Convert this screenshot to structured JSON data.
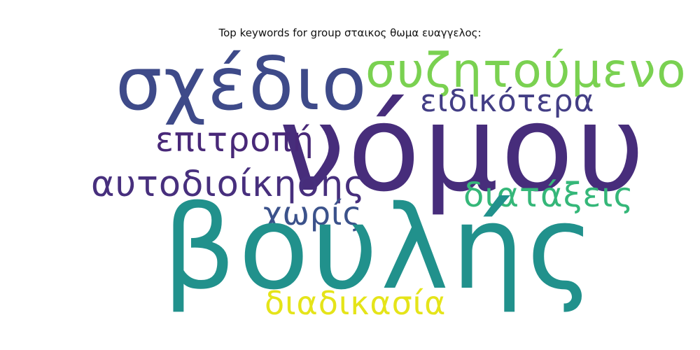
{
  "chart_data": {
    "type": "wordcloud",
    "title": "Top keywords for group σταικος θωμα ευαγγελος:",
    "words": [
      {
        "text": "σχέδιο",
        "weight": 0.62,
        "color": "#3e4a89"
      },
      {
        "text": "συζητούμενο",
        "weight": 0.4,
        "color": "#7ad151"
      },
      {
        "text": "νόμου",
        "weight": 1.0,
        "color": "#472d7b"
      },
      {
        "text": "ειδικότερα",
        "weight": 0.26,
        "color": "#433e85"
      },
      {
        "text": "επιτροπή",
        "weight": 0.28,
        "color": "#482878"
      },
      {
        "text": "αυτοδιοίκησης",
        "weight": 0.3,
        "color": "#472f7d"
      },
      {
        "text": "διατάξεις",
        "weight": 0.28,
        "color": "#35b779"
      },
      {
        "text": "χωρίς",
        "weight": 0.27,
        "color": "#3b528b"
      },
      {
        "text": "βουλής",
        "weight": 0.97,
        "color": "#21918c"
      },
      {
        "text": "διαδικασία",
        "weight": 0.27,
        "color": "#e5e419"
      }
    ]
  }
}
